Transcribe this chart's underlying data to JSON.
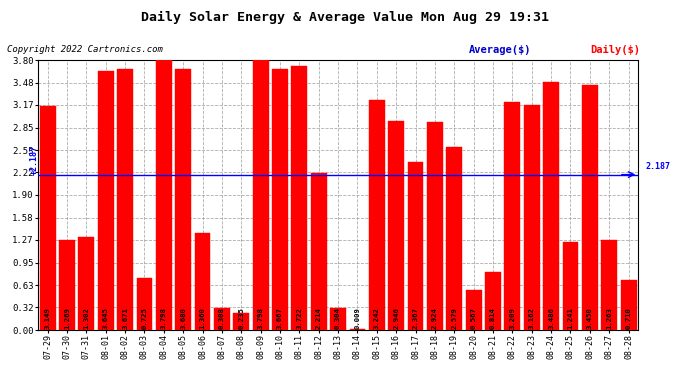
{
  "title": "Daily Solar Energy & Average Value Mon Aug 29 19:31",
  "copyright": "Copyright 2022 Cartronics.com",
  "legend_average": "Average($)",
  "legend_daily": "Daily($)",
  "average_value": 2.187,
  "categories": [
    "07-29",
    "07-30",
    "07-31",
    "08-01",
    "08-02",
    "08-03",
    "08-04",
    "08-05",
    "08-06",
    "08-07",
    "08-08",
    "08-09",
    "08-10",
    "08-11",
    "08-12",
    "08-13",
    "08-14",
    "08-15",
    "08-16",
    "08-17",
    "08-18",
    "08-19",
    "08-20",
    "08-21",
    "08-22",
    "08-23",
    "08-24",
    "08-25",
    "08-26",
    "08-27",
    "08-28"
  ],
  "values": [
    3.149,
    1.269,
    1.302,
    3.645,
    3.671,
    0.725,
    3.798,
    3.68,
    1.36,
    0.308,
    0.235,
    3.798,
    3.667,
    3.722,
    2.214,
    0.304,
    0.009,
    3.242,
    2.946,
    2.367,
    2.924,
    2.579,
    0.567,
    0.814,
    3.209,
    3.162,
    3.486,
    1.241,
    3.45,
    1.263,
    0.71
  ],
  "bar_color": "#FF0000",
  "bar_edge_color": "#FF0000",
  "avg_line_color": "#0000FF",
  "title_color": "#000000",
  "copyright_color": "#000000",
  "legend_avg_color": "#0000CC",
  "legend_daily_color": "#FF0000",
  "bg_color": "#FFFFFF",
  "plot_bg_color": "#FFFFFF",
  "grid_color": "#999999",
  "yticks": [
    0.0,
    0.32,
    0.63,
    0.95,
    1.27,
    1.58,
    1.9,
    2.22,
    2.53,
    2.85,
    3.17,
    3.48,
    3.8
  ],
  "ylim": [
    0,
    3.8
  ],
  "bar_text_color": "#000000",
  "bar_text_fontsize": 5.2,
  "avg_label_fontsize": 6.0
}
